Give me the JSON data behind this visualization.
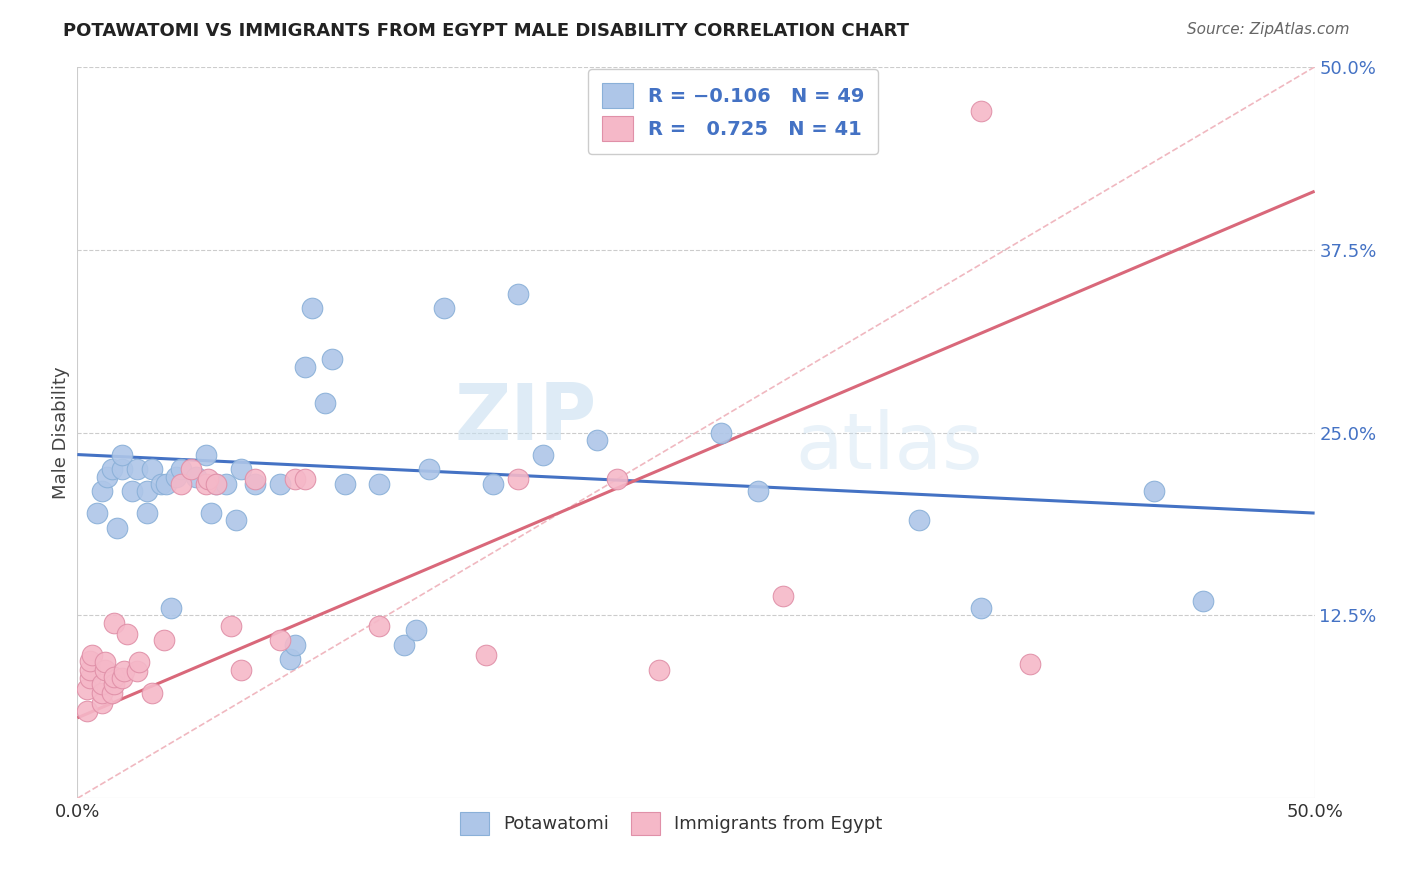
{
  "title": "POTAWATOMI VS IMMIGRANTS FROM EGYPT MALE DISABILITY CORRELATION CHART",
  "source": "Source: ZipAtlas.com",
  "ylabel": "Male Disability",
  "xlim": [
    0.0,
    0.5
  ],
  "ylim": [
    0.0,
    0.5
  ],
  "ytick_positions_right": [
    0.5,
    0.375,
    0.25,
    0.125
  ],
  "ytick_labels_right": [
    "50.0%",
    "37.5%",
    "25.0%",
    "12.5%"
  ],
  "color_blue": "#aec6e8",
  "color_pink": "#f5b8c8",
  "line_blue": "#4472c4",
  "line_pink": "#d9687a",
  "line_diag_color": "#f0b8c0",
  "background": "#ffffff",
  "watermark_zip": "ZIP",
  "watermark_atlas": "atlas",
  "blue_dots": [
    [
      0.008,
      0.195
    ],
    [
      0.01,
      0.21
    ],
    [
      0.012,
      0.22
    ],
    [
      0.014,
      0.225
    ],
    [
      0.016,
      0.185
    ],
    [
      0.018,
      0.225
    ],
    [
      0.018,
      0.235
    ],
    [
      0.022,
      0.21
    ],
    [
      0.024,
      0.225
    ],
    [
      0.028,
      0.195
    ],
    [
      0.028,
      0.21
    ],
    [
      0.03,
      0.225
    ],
    [
      0.034,
      0.215
    ],
    [
      0.036,
      0.215
    ],
    [
      0.038,
      0.13
    ],
    [
      0.04,
      0.22
    ],
    [
      0.042,
      0.225
    ],
    [
      0.048,
      0.22
    ],
    [
      0.052,
      0.235
    ],
    [
      0.054,
      0.195
    ],
    [
      0.056,
      0.215
    ],
    [
      0.06,
      0.215
    ],
    [
      0.064,
      0.19
    ],
    [
      0.066,
      0.225
    ],
    [
      0.072,
      0.215
    ],
    [
      0.082,
      0.215
    ],
    [
      0.086,
      0.095
    ],
    [
      0.088,
      0.105
    ],
    [
      0.092,
      0.295
    ],
    [
      0.095,
      0.335
    ],
    [
      0.1,
      0.27
    ],
    [
      0.103,
      0.3
    ],
    [
      0.108,
      0.215
    ],
    [
      0.122,
      0.215
    ],
    [
      0.132,
      0.105
    ],
    [
      0.137,
      0.115
    ],
    [
      0.142,
      0.225
    ],
    [
      0.148,
      0.335
    ],
    [
      0.168,
      0.215
    ],
    [
      0.178,
      0.345
    ],
    [
      0.188,
      0.235
    ],
    [
      0.21,
      0.245
    ],
    [
      0.26,
      0.25
    ],
    [
      0.34,
      0.19
    ],
    [
      0.365,
      0.13
    ],
    [
      0.435,
      0.21
    ],
    [
      0.455,
      0.135
    ],
    [
      0.275,
      0.21
    ]
  ],
  "pink_dots": [
    [
      0.004,
      0.06
    ],
    [
      0.004,
      0.075
    ],
    [
      0.005,
      0.082
    ],
    [
      0.005,
      0.088
    ],
    [
      0.005,
      0.094
    ],
    [
      0.006,
      0.098
    ],
    [
      0.01,
      0.065
    ],
    [
      0.01,
      0.072
    ],
    [
      0.01,
      0.078
    ],
    [
      0.011,
      0.088
    ],
    [
      0.011,
      0.093
    ],
    [
      0.014,
      0.072
    ],
    [
      0.015,
      0.078
    ],
    [
      0.015,
      0.083
    ],
    [
      0.015,
      0.12
    ],
    [
      0.018,
      0.082
    ],
    [
      0.019,
      0.087
    ],
    [
      0.02,
      0.112
    ],
    [
      0.024,
      0.087
    ],
    [
      0.025,
      0.093
    ],
    [
      0.03,
      0.072
    ],
    [
      0.035,
      0.108
    ],
    [
      0.042,
      0.215
    ],
    [
      0.046,
      0.225
    ],
    [
      0.052,
      0.215
    ],
    [
      0.053,
      0.218
    ],
    [
      0.056,
      0.215
    ],
    [
      0.062,
      0.118
    ],
    [
      0.066,
      0.088
    ],
    [
      0.072,
      0.218
    ],
    [
      0.082,
      0.108
    ],
    [
      0.088,
      0.218
    ],
    [
      0.092,
      0.218
    ],
    [
      0.122,
      0.118
    ],
    [
      0.165,
      0.098
    ],
    [
      0.178,
      0.218
    ],
    [
      0.218,
      0.218
    ],
    [
      0.235,
      0.088
    ],
    [
      0.285,
      0.138
    ],
    [
      0.365,
      0.47
    ],
    [
      0.385,
      0.092
    ]
  ],
  "blue_line_x": [
    0.0,
    0.5
  ],
  "blue_line_y": [
    0.235,
    0.195
  ],
  "pink_line_x": [
    0.0,
    0.5
  ],
  "pink_line_y": [
    0.055,
    0.415
  ],
  "diag_line_x": [
    0.0,
    0.5
  ],
  "diag_line_y": [
    0.0,
    0.5
  ]
}
